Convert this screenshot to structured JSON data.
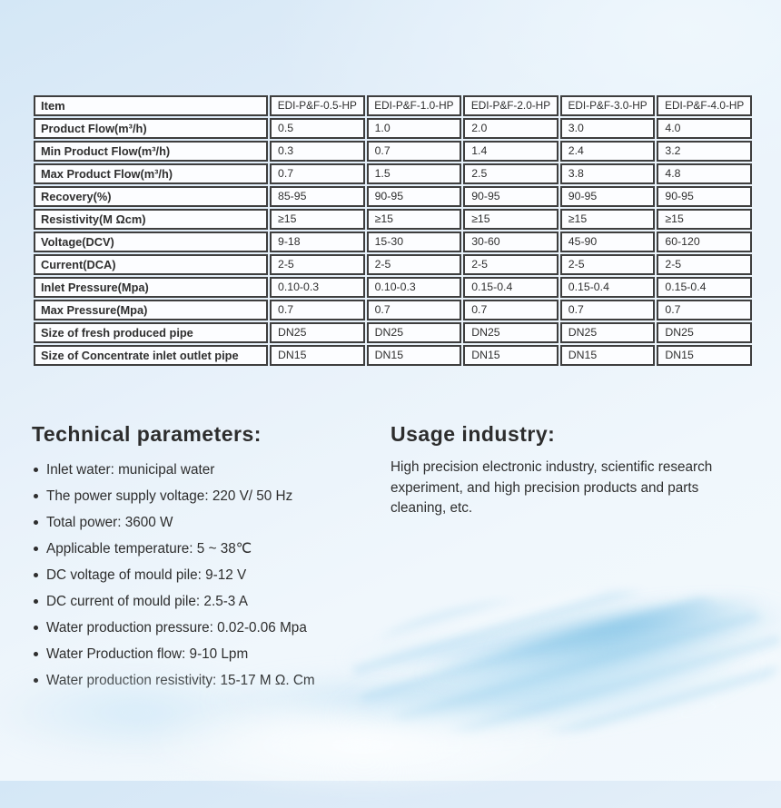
{
  "table": {
    "columns": [
      "Item",
      "EDI-P&F-0.5-HP",
      "EDI-P&F-1.0-HP",
      "EDI-P&F-2.0-HP",
      "EDI-P&F-3.0-HP",
      "EDI-P&F-4.0-HP"
    ],
    "rows": [
      {
        "label": "Product Flow(m³/h)",
        "values": [
          "0.5",
          "1.0",
          "2.0",
          "3.0",
          "4.0"
        ]
      },
      {
        "label": "Min Product Flow(m³/h)",
        "values": [
          "0.3",
          "0.7",
          "1.4",
          "2.4",
          "3.2"
        ]
      },
      {
        "label": "Max Product Flow(m³/h)",
        "values": [
          "0.7",
          "1.5",
          "2.5",
          "3.8",
          "4.8"
        ]
      },
      {
        "label": "Recovery(%)",
        "values": [
          "85-95",
          "90-95",
          "90-95",
          "90-95",
          "90-95"
        ]
      },
      {
        "label": "Resistivity(M Ωcm)",
        "values": [
          "≥15",
          "≥15",
          "≥15",
          "≥15",
          "≥15"
        ]
      },
      {
        "label": "Voltage(DCV)",
        "values": [
          "9-18",
          "15-30",
          "30-60",
          "45-90",
          "60-120"
        ]
      },
      {
        "label": "Current(DCA)",
        "values": [
          "2-5",
          "2-5",
          "2-5",
          "2-5",
          "2-5"
        ]
      },
      {
        "label": "Inlet Pressure(Mpa)",
        "values": [
          "0.10-0.3",
          "0.10-0.3",
          "0.15-0.4",
          "0.15-0.4",
          "0.15-0.4"
        ]
      },
      {
        "label": "Max Pressure(Mpa)",
        "values": [
          "0.7",
          "0.7",
          "0.7",
          "0.7",
          "0.7"
        ]
      },
      {
        "label": "Size of fresh produced pipe",
        "values": [
          "DN25",
          "DN25",
          "DN25",
          "DN25",
          "DN25"
        ]
      },
      {
        "label": "Size of Concentrate inlet outlet pipe",
        "values": [
          "DN15",
          "DN15",
          "DN15",
          "DN15",
          "DN15"
        ]
      }
    ]
  },
  "technical": {
    "heading": "Technical parameters:",
    "items": [
      "Inlet water: municipal water",
      "The power supply voltage: 220 V/ 50 Hz",
      "Total power: 3600 W",
      "Applicable temperature: 5 ~ 38℃",
      "DC voltage of mould pile: 9-12 V",
      "DC current of mould pile: 2.5-3 A",
      "Water production pressure: 0.02-0.06 Mpa",
      "Water Production flow: 9-10 Lpm",
      "Water production resistivity: 15-17 M Ω. Cm"
    ]
  },
  "usage": {
    "heading": "Usage industry:",
    "text": "High precision electronic industry, scientific research experiment, and high precision products and parts cleaning, etc."
  },
  "colors": {
    "background_top": "#d4e7f6",
    "background_bottom": "#f3f9fd",
    "table_border": "#3e3e3e",
    "cell_background": "#fcfdff",
    "text": "#2d2d2d",
    "wave_blue": "#78c0e6"
  }
}
